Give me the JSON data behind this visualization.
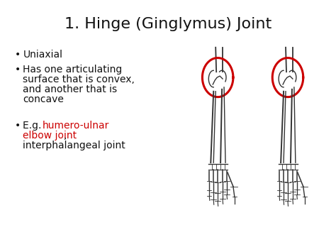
{
  "title": "1. Hinge (Ginglymus) Joint",
  "title_fontsize": 16,
  "title_color": "#111111",
  "background_color": "#ffffff",
  "text_fontsize": 10,
  "bullet1": "Uniaxial",
  "bullet2_line1": "Has one articulating",
  "bullet2_line2": "surface that is convex,",
  "bullet2_line3": "and another that is",
  "bullet2_line4": "concave",
  "bullet3_prefix": "E.g. ",
  "bullet3_red1": "humero-ulnar",
  "bullet3_red2": "elbow joint",
  "bullet3_black": ",",
  "bullet3_last": "interphalangeal joint",
  "red_color": "#cc0000",
  "black_color": "#111111",
  "line_color": "#333333",
  "red_ring_color": "#cc0000"
}
